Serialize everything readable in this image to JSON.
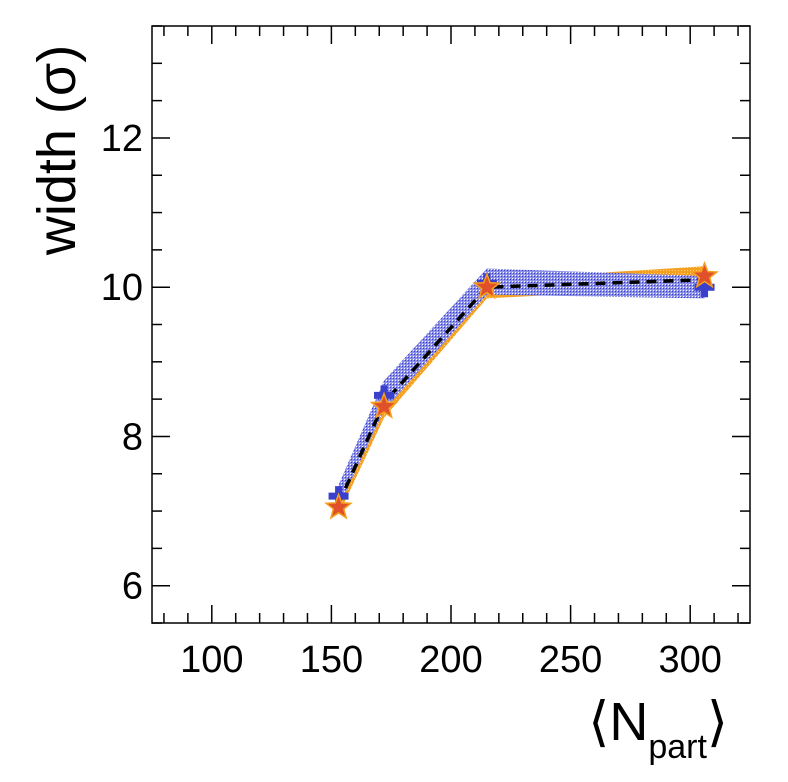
{
  "chart_data": {
    "type": "line",
    "title": "",
    "xlabel": "⟨N_part⟩",
    "xlabel_main": "⟨N",
    "xlabel_sub": "part",
    "xlabel_close": "⟩",
    "ylabel": "width (σ)",
    "xlim": [
      75,
      325
    ],
    "ylim": [
      5.5,
      13.5
    ],
    "x_ticks": [
      100,
      150,
      200,
      250,
      300
    ],
    "y_ticks": [
      6,
      8,
      10,
      12
    ],
    "grid": false,
    "series": [
      {
        "name": "blue-cross-band",
        "color": "#3a3fcc",
        "marker": "cross",
        "x": [
          153,
          172,
          215,
          306
        ],
        "values": [
          7.2,
          8.55,
          10.05,
          10.0
        ],
        "band_low": [
          7.05,
          8.35,
          9.9,
          9.85
        ],
        "band_high": [
          7.35,
          8.75,
          10.25,
          10.15
        ]
      },
      {
        "name": "orange-star-band",
        "color": "#f5a020",
        "marker": "star",
        "x": [
          153,
          172,
          215,
          306
        ],
        "values": [
          7.05,
          8.4,
          10.0,
          10.15
        ],
        "band_low": [
          6.95,
          8.25,
          9.85,
          10.0
        ],
        "band_high": [
          7.15,
          8.55,
          10.1,
          10.28
        ]
      },
      {
        "name": "black-dashed-line",
        "color": "#000000",
        "marker": "none",
        "x": [
          153,
          172,
          215,
          306
        ],
        "values": [
          7.1,
          8.45,
          10.0,
          10.1
        ]
      }
    ]
  }
}
